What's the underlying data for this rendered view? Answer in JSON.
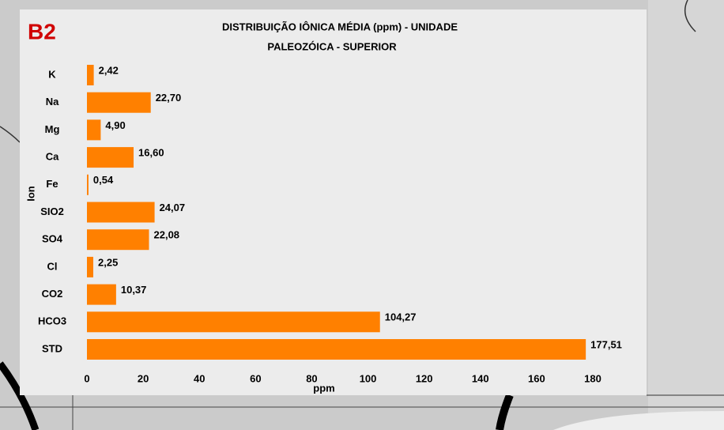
{
  "chart_data": {
    "type": "barh",
    "panel_label": "B2",
    "title": [
      "DISTRIBUIÇÃO IÔNICA MÉDIA (ppm) - UNIDADE",
      "PALEOZÓICA - SUPERIOR"
    ],
    "xlabel": "ppm",
    "ylabel": "Ion",
    "categories": [
      "K",
      "Na",
      "Mg",
      "Ca",
      "Fe",
      "SIO2",
      "SO4",
      "Cl",
      "CO2",
      "HCO3",
      "STD"
    ],
    "values": [
      2.42,
      22.7,
      4.9,
      16.6,
      0.54,
      24.07,
      22.08,
      2.25,
      10.37,
      104.27,
      177.51
    ],
    "value_labels": [
      "2,42",
      "22,70",
      "4,90",
      "16,60",
      "0,54",
      "24,07",
      "22,08",
      "2,25",
      "10,37",
      "104,27",
      "177,51"
    ],
    "color": "#ff8000",
    "xlim": [
      0,
      180
    ],
    "xticks": [
      0,
      20,
      40,
      60,
      80,
      100,
      120,
      140,
      160,
      180
    ]
  }
}
